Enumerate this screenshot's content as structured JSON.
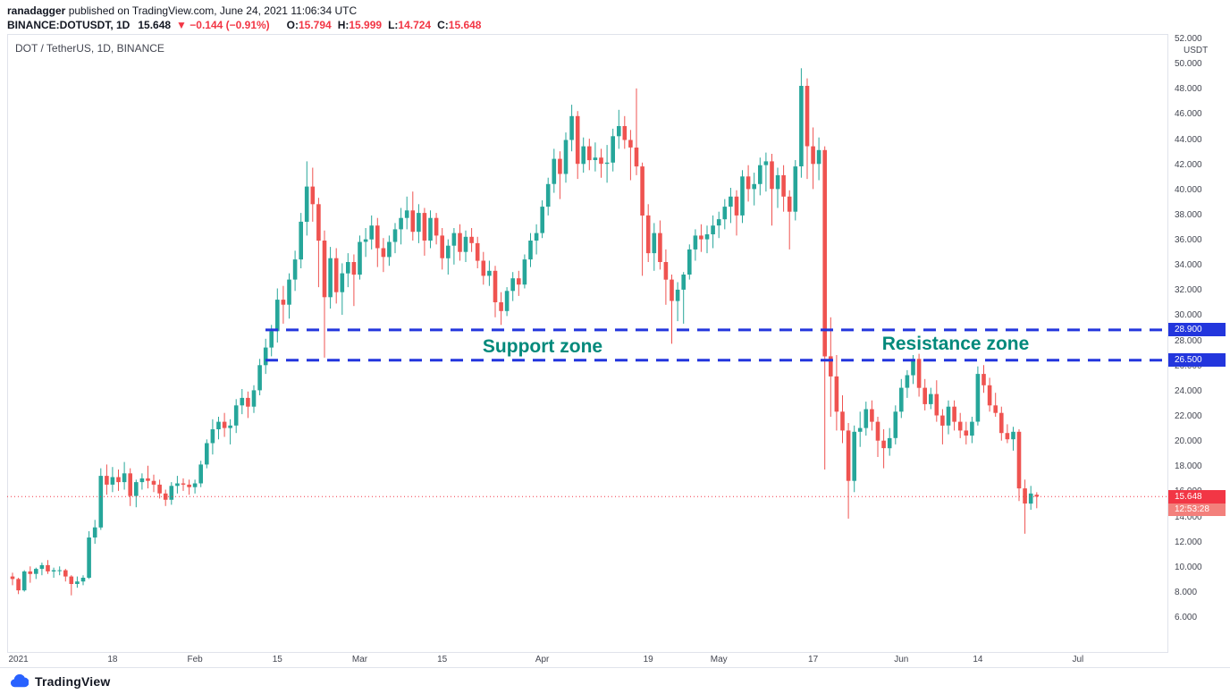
{
  "header": {
    "byline": {
      "author": "ranadagger",
      "rest": " published on TradingView.com, June 24, 2021 11:06:34 UTC"
    },
    "quote": {
      "symbol": "BINANCE:DOTUSDT, 1D",
      "last": "15.648",
      "change": "▼ −0.144 (−0.91%)",
      "ohlc": [
        {
          "label": "O:",
          "value": "15.794"
        },
        {
          "label": "H:",
          "value": "15.999"
        },
        {
          "label": "L:",
          "value": "14.724"
        },
        {
          "label": "C:",
          "value": "15.648"
        }
      ]
    }
  },
  "chart": {
    "legend": "DOT / TetherUS, 1D, BINANCE",
    "annotations": {
      "support": "Support zone",
      "resistance": "Resistance zone"
    },
    "levels": [
      {
        "label": "28.900",
        "price": 28.9
      },
      {
        "label": "26.500",
        "price": 26.5
      }
    ],
    "last_price": {
      "label": "15.648",
      "countdown": "12:53:28",
      "price": 15.648
    },
    "price_axis": {
      "unit": "USDT",
      "ticks": [
        52,
        50,
        48,
        46,
        44,
        42,
        40,
        38,
        36,
        34,
        32,
        30,
        28,
        26,
        24,
        22,
        20,
        18,
        16,
        14,
        12,
        10,
        8,
        6
      ]
    },
    "time_axis": {
      "ticks": [
        {
          "label": "2021",
          "i": 1
        },
        {
          "label": "18",
          "i": 17
        },
        {
          "label": "Feb",
          "i": 31
        },
        {
          "label": "15",
          "i": 45
        },
        {
          "label": "Mar",
          "i": 59
        },
        {
          "label": "15",
          "i": 73
        },
        {
          "label": "Apr",
          "i": 90
        },
        {
          "label": "19",
          "i": 108
        },
        {
          "label": "May",
          "i": 120
        },
        {
          "label": "17",
          "i": 136
        },
        {
          "label": "Jun",
          "i": 151
        },
        {
          "label": "14",
          "i": 164
        },
        {
          "label": "Jul",
          "i": 181
        }
      ]
    },
    "colors": {
      "up": "#26a69a",
      "down": "#ef5350",
      "level_blue": "#2336dd",
      "annotation_teal": "#00897b",
      "last_red": "#f23645",
      "countdown_red": "#f3807c"
    }
  },
  "footer": {
    "brand": "TradingView",
    "logo_color": "#2962ff"
  },
  "chart_data": {
    "type": "candlestick",
    "title": "DOT / TetherUS, 1D, BINANCE",
    "symbol": "DOT/USDT",
    "exchange": "BINANCE",
    "interval": "1D",
    "y_unit": "USDT",
    "ylim": [
      6,
      52
    ],
    "y_tick_step": 2,
    "x_start": "2021-01-01",
    "x_end": "2021-06-24",
    "x_tick_labels": [
      "2021",
      "18",
      "Feb",
      "15",
      "Mar",
      "15",
      "Apr",
      "19",
      "May",
      "17",
      "Jun",
      "14",
      "Jul"
    ],
    "support_resistance_levels": [
      28.9,
      26.5
    ],
    "last_close": 15.648,
    "ohlc_today": {
      "open": 15.794,
      "high": 15.999,
      "low": 14.724,
      "close": 15.648
    },
    "candles_ohlc": [
      [
        9.3,
        9.6,
        8.6,
        9.1
      ],
      [
        9.1,
        9.2,
        7.9,
        8.2
      ],
      [
        8.2,
        9.8,
        8.1,
        9.7
      ],
      [
        9.7,
        10.1,
        8.8,
        9.5
      ],
      [
        9.5,
        10.0,
        9.1,
        9.9
      ],
      [
        9.9,
        10.4,
        9.4,
        10.2
      ],
      [
        10.2,
        10.6,
        9.5,
        9.7
      ],
      [
        9.7,
        10.0,
        9.2,
        9.8
      ],
      [
        9.8,
        10.1,
        9.4,
        9.8
      ],
      [
        9.8,
        9.9,
        8.9,
        9.3
      ],
      [
        9.3,
        9.4,
        7.8,
        8.7
      ],
      [
        8.7,
        9.3,
        8.4,
        8.9
      ],
      [
        8.9,
        9.4,
        8.6,
        9.2
      ],
      [
        9.2,
        12.9,
        9.1,
        12.4
      ],
      [
        12.4,
        13.8,
        11.9,
        13.2
      ],
      [
        13.2,
        17.9,
        13.0,
        17.3
      ],
      [
        17.3,
        18.2,
        15.8,
        16.6
      ],
      [
        16.6,
        18.0,
        16.0,
        17.2
      ],
      [
        17.2,
        17.8,
        16.1,
        16.8
      ],
      [
        16.8,
        18.4,
        16.2,
        17.5
      ],
      [
        17.5,
        17.9,
        14.9,
        15.7
      ],
      [
        15.7,
        17.0,
        14.8,
        16.8
      ],
      [
        16.8,
        17.5,
        16.2,
        17.1
      ],
      [
        17.1,
        18.1,
        16.3,
        16.9
      ],
      [
        16.9,
        17.4,
        16.0,
        16.6
      ],
      [
        16.6,
        17.0,
        15.5,
        15.9
      ],
      [
        15.9,
        16.2,
        14.9,
        15.4
      ],
      [
        15.4,
        16.8,
        15.0,
        16.5
      ],
      [
        16.5,
        17.3,
        15.9,
        16.7
      ],
      [
        16.7,
        17.1,
        16.1,
        16.6
      ],
      [
        16.6,
        17.0,
        15.8,
        16.4
      ],
      [
        16.4,
        17.0,
        15.9,
        16.7
      ],
      [
        16.7,
        18.5,
        16.4,
        18.2
      ],
      [
        18.2,
        20.2,
        17.9,
        19.9
      ],
      [
        19.9,
        21.8,
        19.0,
        21.0
      ],
      [
        21.0,
        22.0,
        20.2,
        21.6
      ],
      [
        21.6,
        22.3,
        20.4,
        21.1
      ],
      [
        21.1,
        21.8,
        19.8,
        21.3
      ],
      [
        21.3,
        23.4,
        20.7,
        22.9
      ],
      [
        22.9,
        24.2,
        22.2,
        23.5
      ],
      [
        23.5,
        24.0,
        21.9,
        22.8
      ],
      [
        22.8,
        24.5,
        22.3,
        24.1
      ],
      [
        24.1,
        26.6,
        23.7,
        26.1
      ],
      [
        26.1,
        28.2,
        25.4,
        27.5
      ],
      [
        27.5,
        29.3,
        26.8,
        28.8
      ],
      [
        28.8,
        32.2,
        27.9,
        31.3
      ],
      [
        31.3,
        32.4,
        29.4,
        30.9
      ],
      [
        30.9,
        33.4,
        29.8,
        32.9
      ],
      [
        32.9,
        35.2,
        32.0,
        34.5
      ],
      [
        34.5,
        38.2,
        33.8,
        37.5
      ],
      [
        37.5,
        42.3,
        36.4,
        40.3
      ],
      [
        40.3,
        41.8,
        37.5,
        38.9
      ],
      [
        38.9,
        39.4,
        32.3,
        36.0
      ],
      [
        36.0,
        36.8,
        26.7,
        31.5
      ],
      [
        31.5,
        35.5,
        30.6,
        34.6
      ],
      [
        34.6,
        35.4,
        31.0,
        31.9
      ],
      [
        31.9,
        34.2,
        30.1,
        33.4
      ],
      [
        33.4,
        35.0,
        32.3,
        34.3
      ],
      [
        34.3,
        34.9,
        30.8,
        33.3
      ],
      [
        33.3,
        36.4,
        32.9,
        35.9
      ],
      [
        35.9,
        37.0,
        34.7,
        36.1
      ],
      [
        36.1,
        38.0,
        35.3,
        37.2
      ],
      [
        37.2,
        37.8,
        33.9,
        35.4
      ],
      [
        35.4,
        36.2,
        33.5,
        34.7
      ],
      [
        34.7,
        36.4,
        34.0,
        35.9
      ],
      [
        35.9,
        37.4,
        35.0,
        36.9
      ],
      [
        36.9,
        38.6,
        35.7,
        37.8
      ],
      [
        37.8,
        39.5,
        36.9,
        38.4
      ],
      [
        38.4,
        39.9,
        36.0,
        36.7
      ],
      [
        36.7,
        38.9,
        35.8,
        38.2
      ],
      [
        38.2,
        38.6,
        34.8,
        36.0
      ],
      [
        36.0,
        38.4,
        35.4,
        37.8
      ],
      [
        37.8,
        38.2,
        35.7,
        36.4
      ],
      [
        36.4,
        37.0,
        33.7,
        34.6
      ],
      [
        34.6,
        36.1,
        33.3,
        35.6
      ],
      [
        35.6,
        37.0,
        34.1,
        36.6
      ],
      [
        36.6,
        37.3,
        34.4,
        35.1
      ],
      [
        35.1,
        36.8,
        34.3,
        36.3
      ],
      [
        36.3,
        37.0,
        35.1,
        35.8
      ],
      [
        35.8,
        36.3,
        33.8,
        34.4
      ],
      [
        34.4,
        35.1,
        32.5,
        33.2
      ],
      [
        33.2,
        34.4,
        32.4,
        33.6
      ],
      [
        33.6,
        34.0,
        29.9,
        31.1
      ],
      [
        31.1,
        31.9,
        29.3,
        30.4
      ],
      [
        30.4,
        32.3,
        30.0,
        32.0
      ],
      [
        32.0,
        33.5,
        31.2,
        33.0
      ],
      [
        33.0,
        33.6,
        31.6,
        32.5
      ],
      [
        32.5,
        34.9,
        32.2,
        34.5
      ],
      [
        34.5,
        36.6,
        33.9,
        36.0
      ],
      [
        36.0,
        37.3,
        34.9,
        36.6
      ],
      [
        36.6,
        39.2,
        36.2,
        38.7
      ],
      [
        38.7,
        41.0,
        38.0,
        40.5
      ],
      [
        40.5,
        43.3,
        39.8,
        42.5
      ],
      [
        42.5,
        43.1,
        39.3,
        41.3
      ],
      [
        41.3,
        44.6,
        40.6,
        44.0
      ],
      [
        44.0,
        46.8,
        43.1,
        45.9
      ],
      [
        45.9,
        46.3,
        40.9,
        42.1
      ],
      [
        42.1,
        44.2,
        41.4,
        43.5
      ],
      [
        43.5,
        44.1,
        41.6,
        42.4
      ],
      [
        42.4,
        43.8,
        41.5,
        42.6
      ],
      [
        42.6,
        43.3,
        41.0,
        42.1
      ],
      [
        42.1,
        43.6,
        40.6,
        42.2
      ],
      [
        42.2,
        44.9,
        41.5,
        44.3
      ],
      [
        44.3,
        46.4,
        43.3,
        45.1
      ],
      [
        45.1,
        45.9,
        43.3,
        44.0
      ],
      [
        44.0,
        44.8,
        40.8,
        43.4
      ],
      [
        43.4,
        48.1,
        41.2,
        41.9
      ],
      [
        41.9,
        42.2,
        33.2,
        38.0
      ],
      [
        38.0,
        38.9,
        34.3,
        35.0
      ],
      [
        35.0,
        37.4,
        33.6,
        36.6
      ],
      [
        36.6,
        37.6,
        33.7,
        34.3
      ],
      [
        34.3,
        35.3,
        30.9,
        32.9
      ],
      [
        32.9,
        33.3,
        27.8,
        31.2
      ],
      [
        31.2,
        32.7,
        29.6,
        32.1
      ],
      [
        32.1,
        33.5,
        29.4,
        33.3
      ],
      [
        33.3,
        35.7,
        32.9,
        35.3
      ],
      [
        35.3,
        36.9,
        34.4,
        36.4
      ],
      [
        36.4,
        37.3,
        35.1,
        36.1
      ],
      [
        36.1,
        37.2,
        35.0,
        36.5
      ],
      [
        36.5,
        38.0,
        35.4,
        37.2
      ],
      [
        37.2,
        38.3,
        36.2,
        37.7
      ],
      [
        37.7,
        39.3,
        36.9,
        38.7
      ],
      [
        38.7,
        40.2,
        37.4,
        39.5
      ],
      [
        39.5,
        40.0,
        36.4,
        38.0
      ],
      [
        38.0,
        41.6,
        37.4,
        41.1
      ],
      [
        41.1,
        42.0,
        39.1,
        40.1
      ],
      [
        40.1,
        41.4,
        38.8,
        40.5
      ],
      [
        40.5,
        42.6,
        39.6,
        42.0
      ],
      [
        42.0,
        43.0,
        39.9,
        42.3
      ],
      [
        42.3,
        42.9,
        37.2,
        40.1
      ],
      [
        40.1,
        41.8,
        38.6,
        41.2
      ],
      [
        41.2,
        42.0,
        38.3,
        39.5
      ],
      [
        39.5,
        40.0,
        35.3,
        38.3
      ],
      [
        38.3,
        42.4,
        37.6,
        41.9
      ],
      [
        41.9,
        49.7,
        41.0,
        48.3
      ],
      [
        48.3,
        48.9,
        40.9,
        43.5
      ],
      [
        43.5,
        45.0,
        40.1,
        42.1
      ],
      [
        42.1,
        44.2,
        40.8,
        43.2
      ],
      [
        43.2,
        43.5,
        17.8,
        26.8
      ],
      [
        26.8,
        29.9,
        22.0,
        25.2
      ],
      [
        25.2,
        26.9,
        20.9,
        22.4
      ],
      [
        22.4,
        23.7,
        19.9,
        20.9
      ],
      [
        20.9,
        21.5,
        13.9,
        16.9
      ],
      [
        16.9,
        21.3,
        16.0,
        20.8
      ],
      [
        20.8,
        22.4,
        19.6,
        21.1
      ],
      [
        21.1,
        23.2,
        20.5,
        22.6
      ],
      [
        22.6,
        23.3,
        20.9,
        21.6
      ],
      [
        21.6,
        22.0,
        18.8,
        20.1
      ],
      [
        20.1,
        21.0,
        17.9,
        19.5
      ],
      [
        19.5,
        21.1,
        18.9,
        20.3
      ],
      [
        20.3,
        22.9,
        19.8,
        22.4
      ],
      [
        22.4,
        25.0,
        21.9,
        24.3
      ],
      [
        24.3,
        25.7,
        23.5,
        25.3
      ],
      [
        25.3,
        26.9,
        24.6,
        26.6
      ],
      [
        26.6,
        27.0,
        23.6,
        24.3
      ],
      [
        24.3,
        25.0,
        22.5,
        23.0
      ],
      [
        23.0,
        24.3,
        22.6,
        23.8
      ],
      [
        23.8,
        24.9,
        21.6,
        22.1
      ],
      [
        22.1,
        22.6,
        19.8,
        21.3
      ],
      [
        21.3,
        23.3,
        20.6,
        22.8
      ],
      [
        22.8,
        23.3,
        20.9,
        21.6
      ],
      [
        21.6,
        22.3,
        20.3,
        20.9
      ],
      [
        20.9,
        21.6,
        19.8,
        20.5
      ],
      [
        20.5,
        22.0,
        19.9,
        21.6
      ],
      [
        21.6,
        26.0,
        21.3,
        25.4
      ],
      [
        25.4,
        26.1,
        23.9,
        24.5
      ],
      [
        24.5,
        25.1,
        22.4,
        22.9
      ],
      [
        22.9,
        23.9,
        22.0,
        22.3
      ],
      [
        22.3,
        22.8,
        20.1,
        20.7
      ],
      [
        20.7,
        21.4,
        19.9,
        20.2
      ],
      [
        20.2,
        21.2,
        19.3,
        20.8
      ],
      [
        20.8,
        21.0,
        15.3,
        16.3
      ],
      [
        16.3,
        17.0,
        12.7,
        15.1
      ],
      [
        15.1,
        16.5,
        14.6,
        15.9
      ],
      [
        15.794,
        15.999,
        14.724,
        15.648
      ]
    ]
  }
}
